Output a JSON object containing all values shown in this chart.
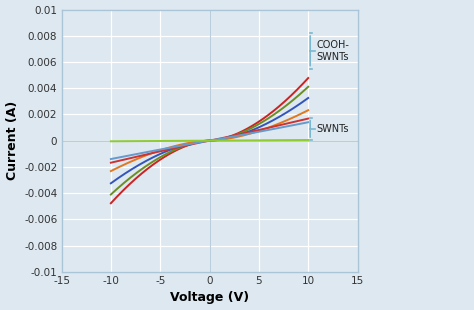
{
  "xlabel": "Voltage (V)",
  "ylabel": "Current (A)",
  "xlim": [
    -15,
    15
  ],
  "ylim": [
    -0.01,
    0.01
  ],
  "xticks": [
    -15,
    -10,
    -5,
    0,
    5,
    10,
    15
  ],
  "yticks": [
    -0.01,
    -0.008,
    -0.006,
    -0.004,
    -0.002,
    0,
    0.002,
    0.004,
    0.006,
    0.008,
    0.01
  ],
  "ytick_labels": [
    "-0.01",
    "-0.008",
    "-0.006",
    "-0.004",
    "-0.002",
    "0",
    "0.002",
    "0.004",
    "0.006",
    "0.008",
    "0.01"
  ],
  "background_color": "#dde8f0",
  "grid_color": "#ffffff",
  "cooh_curves": [
    {
      "color": "#cc2222",
      "a": 9.1e-05,
      "p": 1.72
    },
    {
      "color": "#6b8e23",
      "a": 8.2e-05,
      "p": 1.7
    },
    {
      "color": "#3355bb",
      "a": 6.8e-05,
      "p": 1.68
    },
    {
      "color": "#e07820",
      "a": 5.2e-05,
      "p": 1.65
    }
  ],
  "swnt_curves": [
    {
      "color": "#cc3333",
      "a": 0.00015,
      "p": 1.05
    },
    {
      "color": "#6699cc",
      "a": 0.000125,
      "p": 1.05
    },
    {
      "color": "#90cc30",
      "a": 5e-06,
      "p": 1.0
    }
  ],
  "annotation_cooh": "COOH-\nSWNTs",
  "annotation_swnt": "SWNTs",
  "bracket_color": "#7ab8d0"
}
